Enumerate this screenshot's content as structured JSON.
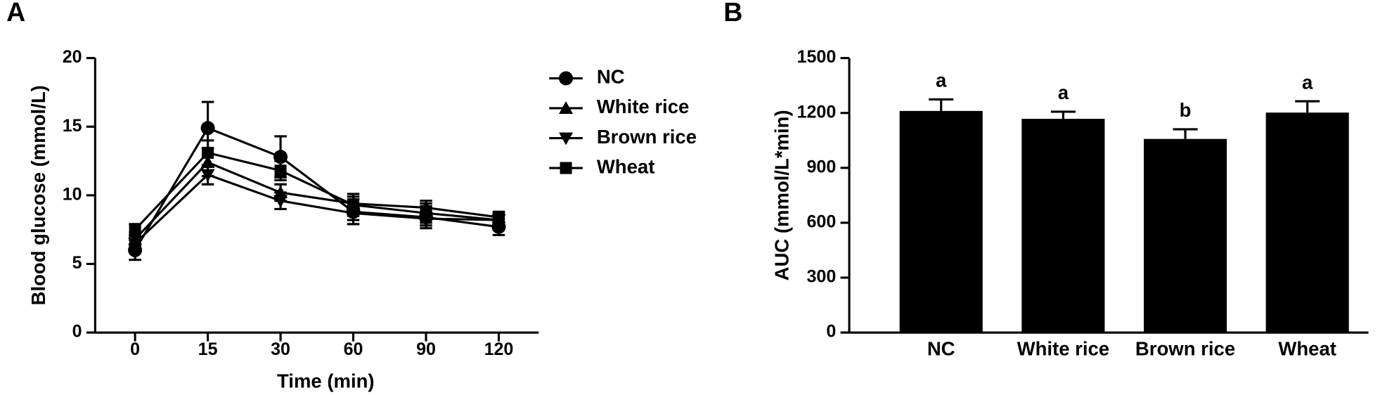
{
  "chart_data": [
    {
      "type": "line",
      "panel_label": "A",
      "xlabel": "Time (min)",
      "ylabel": "Blood glucose (mmol/L)",
      "categories": [
        "0",
        "15",
        "30",
        "60",
        "90",
        "120"
      ],
      "ylim": [
        0,
        20
      ],
      "yticks": [
        0,
        5,
        10,
        15,
        20
      ],
      "series": [
        {
          "name": "NC",
          "marker": "circle",
          "color": "#000000",
          "values": [
            6.0,
            14.9,
            12.8,
            8.8,
            8.4,
            7.7
          ],
          "errors": [
            0.7,
            1.9,
            1.5,
            0.9,
            0.8,
            0.6
          ]
        },
        {
          "name": "White rice",
          "marker": "triangle-up",
          "color": "#000000",
          "values": [
            6.8,
            12.4,
            10.2,
            9.4,
            9.1,
            8.4
          ],
          "errors": [
            0.5,
            1.0,
            0.6,
            0.5,
            0.5,
            0.4
          ]
        },
        {
          "name": "Brown rice",
          "marker": "triangle-down",
          "color": "#000000",
          "values": [
            6.5,
            11.5,
            9.6,
            8.7,
            8.3,
            8.2
          ],
          "errors": [
            0.5,
            0.7,
            0.6,
            0.5,
            0.5,
            0.4
          ]
        },
        {
          "name": "Wheat",
          "marker": "square",
          "color": "#000000",
          "values": [
            7.5,
            13.1,
            11.8,
            9.3,
            8.7,
            8.2
          ],
          "errors": [
            0.4,
            0.9,
            0.7,
            0.8,
            0.7,
            0.5
          ]
        }
      ]
    },
    {
      "type": "bar",
      "panel_label": "B",
      "ylabel": "AUC (mmol/L*min)",
      "categories": [
        "NC",
        "White rice",
        "Brown rice",
        "Wheat"
      ],
      "values": [
        1211,
        1168,
        1058,
        1202
      ],
      "errors": [
        63,
        39,
        53,
        62
      ],
      "annotations": [
        "a",
        "a",
        "b",
        "a"
      ],
      "color": "#000000",
      "ylim": [
        0,
        1500
      ],
      "yticks": [
        0,
        300,
        600,
        900,
        1200,
        1500
      ]
    }
  ]
}
